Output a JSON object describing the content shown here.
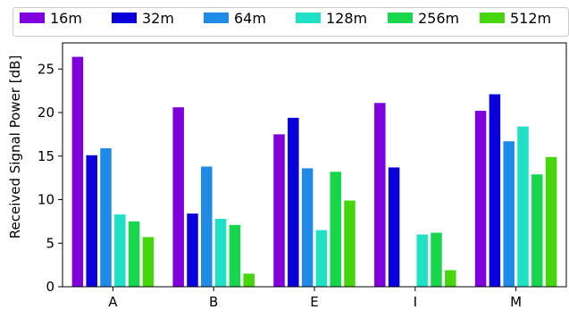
{
  "chart_data": {
    "type": "bar",
    "categories": [
      "A",
      "B",
      "E",
      "I",
      "M"
    ],
    "series": [
      {
        "name": "16m",
        "color": "#7f00dd",
        "values": [
          26.4,
          20.6,
          17.5,
          21.1,
          20.2
        ]
      },
      {
        "name": "32m",
        "color": "#0a00dc",
        "values": [
          15.1,
          8.4,
          19.4,
          13.7,
          22.1
        ]
      },
      {
        "name": "64m",
        "color": "#1f8be6",
        "values": [
          15.9,
          13.8,
          13.6,
          0,
          16.7
        ]
      },
      {
        "name": "128m",
        "color": "#1ee1c6",
        "values": [
          8.3,
          7.8,
          6.5,
          6.0,
          18.4
        ]
      },
      {
        "name": "256m",
        "color": "#18d64c",
        "values": [
          7.5,
          7.1,
          13.2,
          6.2,
          12.9
        ]
      },
      {
        "name": "512m",
        "color": "#46d60e",
        "values": [
          5.7,
          1.5,
          9.9,
          1.9,
          14.9
        ]
      }
    ],
    "title": "",
    "xlabel": "",
    "ylabel": "Received Signal Power [dB]",
    "ylim": [
      0,
      28
    ],
    "yticks": [
      0,
      5,
      10,
      15,
      20,
      25
    ],
    "grid": false,
    "legend_position": "top"
  }
}
